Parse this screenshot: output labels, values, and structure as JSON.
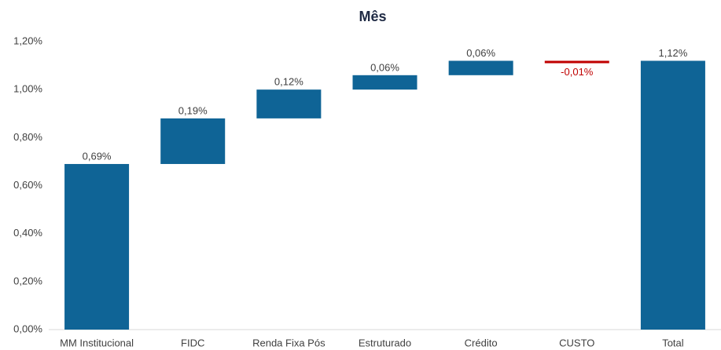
{
  "chart_data": {
    "type": "waterfall",
    "title": "Mês",
    "categories": [
      "MM Institucional",
      "FIDC",
      "Renda Fixa Pós",
      "Estruturado",
      "Crédito",
      "CUSTO",
      "Total"
    ],
    "values": [
      0.69,
      0.19,
      0.12,
      0.06,
      0.06,
      -0.01,
      1.12
    ],
    "value_labels": [
      "0,69%",
      "0,19%",
      "0,12%",
      "0,06%",
      "0,06%",
      "-0,01%",
      "1,12%"
    ],
    "is_total": [
      false,
      false,
      false,
      false,
      false,
      false,
      true
    ],
    "increase_color": "#0f6496",
    "decrease_color": "#c00000",
    "total_color": "#0f6496",
    "ylim": [
      0,
      1.2
    ],
    "yticks": [
      {
        "value": 0,
        "label": "0,00%"
      },
      {
        "value": 0.2,
        "label": "0,20%"
      },
      {
        "value": 0.4,
        "label": "0,40%"
      },
      {
        "value": 0.6,
        "label": "0,60%"
      },
      {
        "value": 0.8,
        "label": "0,80%"
      },
      {
        "value": 1.0,
        "label": "1,00%"
      },
      {
        "value": 1.2,
        "label": "1,20%"
      }
    ],
    "grid": false
  }
}
